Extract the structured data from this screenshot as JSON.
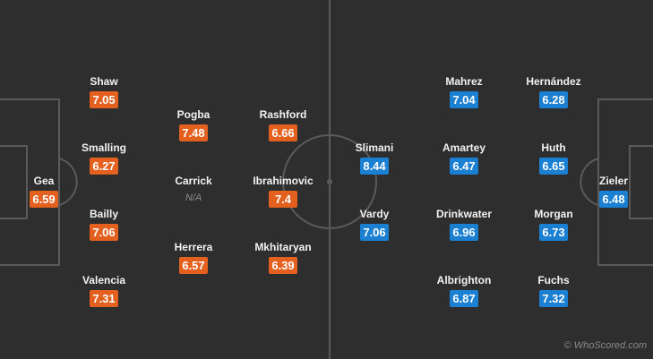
{
  "colors": {
    "pitch": "#2e2e2e",
    "lines": "#5a5a5a",
    "home_rating": "#e4601f",
    "away_rating": "#1b7fd2"
  },
  "home": {
    "players": [
      {
        "name": "Gea",
        "rating": "6.59"
      },
      {
        "name": "Shaw",
        "rating": "7.05"
      },
      {
        "name": "Smalling",
        "rating": "6.27"
      },
      {
        "name": "Bailly",
        "rating": "7.06"
      },
      {
        "name": "Valencia",
        "rating": "7.31"
      },
      {
        "name": "Pogba",
        "rating": "7.48"
      },
      {
        "name": "Carrick",
        "rating": "N/A"
      },
      {
        "name": "Herrera",
        "rating": "6.57"
      },
      {
        "name": "Rashford",
        "rating": "6.66"
      },
      {
        "name": "Ibrahimovic",
        "rating": "7.4"
      },
      {
        "name": "Mkhitaryan",
        "rating": "6.39"
      }
    ]
  },
  "away": {
    "players": [
      {
        "name": "Slimani",
        "rating": "8.44"
      },
      {
        "name": "Vardy",
        "rating": "7.06"
      },
      {
        "name": "Mahrez",
        "rating": "7.04"
      },
      {
        "name": "Amartey",
        "rating": "6.47"
      },
      {
        "name": "Drinkwater",
        "rating": "6.96"
      },
      {
        "name": "Albrighton",
        "rating": "6.87"
      },
      {
        "name": "Hernández",
        "rating": "6.28"
      },
      {
        "name": "Huth",
        "rating": "6.65"
      },
      {
        "name": "Morgan",
        "rating": "6.73"
      },
      {
        "name": "Fuchs",
        "rating": "7.32"
      },
      {
        "name": "Zieler",
        "rating": "6.48"
      }
    ]
  },
  "watermark": "© WhoScored.com"
}
